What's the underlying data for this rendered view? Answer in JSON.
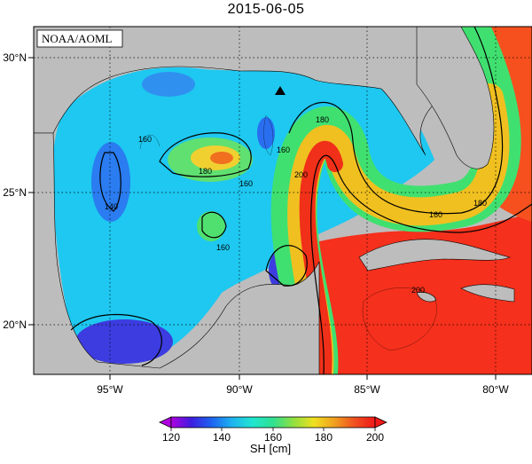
{
  "title": "2015-06-05",
  "credit": "NOAA/AOML",
  "map": {
    "lon_range": [
      -98,
      -78.5
    ],
    "lat_range": [
      18.2,
      31
    ],
    "lon_ticks": [
      "95°W",
      "90°W",
      "85°W",
      "80°W"
    ],
    "lat_ticks": [
      "30°N",
      "25°N",
      "20°N"
    ],
    "grid": "dotted",
    "land_color": "#bdbdbd",
    "marker": "station-triangle"
  },
  "contour_labels": [
    "160",
    "140",
    "180",
    "160",
    "160",
    "200",
    "180",
    "160",
    "180",
    "160",
    "200"
  ],
  "colorbar": {
    "ticks": [
      "120",
      "140",
      "160",
      "180",
      "200"
    ],
    "label": "SH [cm]",
    "range": [
      120,
      200
    ],
    "colors": [
      "#b000e0",
      "#3c1ee0",
      "#1e64f0",
      "#1eb4f0",
      "#20e6d0",
      "#30e090",
      "#90e040",
      "#f0e020",
      "#f0a020",
      "#f05020",
      "#f01818"
    ],
    "extend": "both"
  }
}
